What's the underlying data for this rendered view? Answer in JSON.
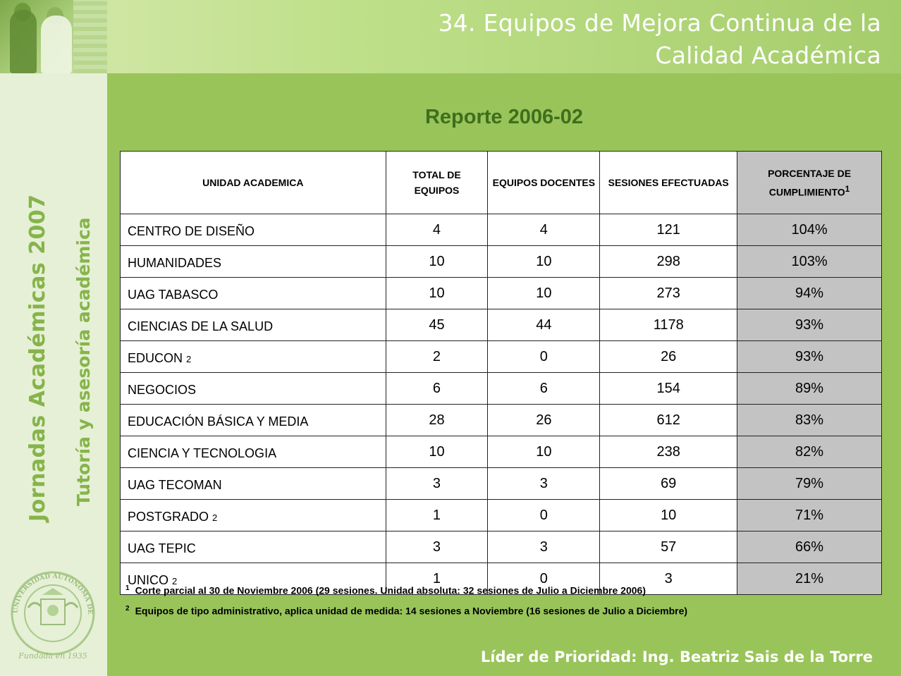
{
  "header": {
    "title_line1": "34. Equipos de Mejora Continua de la",
    "title_line2": "Calidad Académica"
  },
  "sidebar": {
    "event_title": "Jornadas Académicas 2007",
    "event_subtitle": "Tutoría y asesoría académica",
    "seal_text": "UNIVERSIDAD AUTÓNOMA DE GUADALAJARA",
    "seal_founded": "Fundada en 1935"
  },
  "report": {
    "title": "Reporte 2006-02",
    "columns": {
      "unit": "UNIDAD ACADEMICA",
      "total": "TOTAL DE EQUIPOS",
      "teaching": "EQUIPOS DOCENTES",
      "sessions": "SESIONES EFECTUADAS",
      "percent": "PORCENTAJE DE CUMPLIMIENTO",
      "percent_note": "1"
    },
    "rows": [
      {
        "unit": "CENTRO DE DISEÑO",
        "note": "",
        "total": "4",
        "teaching": "4",
        "sessions": "121",
        "percent": "104%"
      },
      {
        "unit": "HUMANIDADES",
        "note": "",
        "total": "10",
        "teaching": "10",
        "sessions": "298",
        "percent": "103%"
      },
      {
        "unit": "UAG TABASCO",
        "note": "",
        "total": "10",
        "teaching": "10",
        "sessions": "273",
        "percent": "94%"
      },
      {
        "unit": "CIENCIAS DE LA SALUD",
        "note": "",
        "total": "45",
        "teaching": "44",
        "sessions": "1178",
        "percent": "93%"
      },
      {
        "unit": "EDUCON",
        "note": "2",
        "total": "2",
        "teaching": "0",
        "sessions": "26",
        "percent": "93%"
      },
      {
        "unit": "NEGOCIOS",
        "note": "",
        "total": "6",
        "teaching": "6",
        "sessions": "154",
        "percent": "89%"
      },
      {
        "unit": "EDUCACIÓN BÁSICA Y MEDIA",
        "note": "",
        "total": "28",
        "teaching": "26",
        "sessions": "612",
        "percent": "83%"
      },
      {
        "unit": "CIENCIA Y TECNOLOGIA",
        "note": "",
        "total": "10",
        "teaching": "10",
        "sessions": "238",
        "percent": "82%"
      },
      {
        "unit": "UAG TECOMAN",
        "note": "",
        "total": "3",
        "teaching": "3",
        "sessions": "69",
        "percent": "79%"
      },
      {
        "unit": "POSTGRADO",
        "note": "2",
        "total": "1",
        "teaching": "0",
        "sessions": "10",
        "percent": "71%"
      },
      {
        "unit": "UAG TEPIC",
        "note": "",
        "total": "3",
        "teaching": "3",
        "sessions": "57",
        "percent": "66%"
      },
      {
        "unit": "UNICO",
        "note": "2",
        "total": "1",
        "teaching": "0",
        "sessions": "3",
        "percent": "21%"
      }
    ],
    "footnotes": [
      {
        "mark": "1",
        "text": "Corte parcial al 30 de Noviembre 2006 (29 sesiones. Unidad absoluta: 32 sesiones de Julio a Diciembre 2006)"
      },
      {
        "mark": "2",
        "text": "Equipos de tipo administrativo, aplica unidad de medida: 14 sesiones a Noviembre (16 sesiones de Julio a Diciembre)"
      }
    ]
  },
  "footer": {
    "leader": "Líder de Prioridad: Ing. Beatriz Sais de la Torre"
  },
  "colors": {
    "background": "#99c45a",
    "sidebar": "#e6f0d6",
    "accent_text": "#86b44a",
    "report_title": "#3f6f1c",
    "percent_cell": "#c3c3c3"
  }
}
